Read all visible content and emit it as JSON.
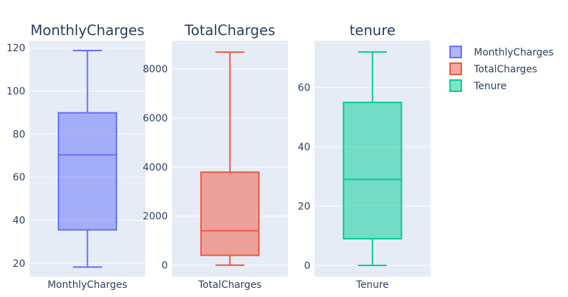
{
  "chart_data": {
    "type": "box",
    "legend": {
      "position": "right",
      "entries": [
        "MonthlyCharges",
        "TotalCharges",
        "Tenure"
      ]
    },
    "grid": true,
    "subplots": [
      {
        "title": "MonthlyCharges",
        "category": "MonthlyCharges",
        "series_name": "MonthlyCharges",
        "color": "#636efa",
        "fill": "rgba(99,110,250,0.5)",
        "ylim": [
          13.8,
          123.3
        ],
        "yticks": [
          20,
          40,
          60,
          80,
          100,
          120
        ],
        "stats": {
          "min": 18.25,
          "q1": 35.5,
          "median": 70.35,
          "q3": 89.85,
          "max": 118.75
        }
      },
      {
        "title": "TotalCharges",
        "category": "TotalCharges",
        "series_name": "TotalCharges",
        "color": "#ef553b",
        "fill": "rgba(239,85,59,0.5)",
        "ylim": [
          -470,
          9150
        ],
        "yticks": [
          0,
          2000,
          4000,
          6000,
          8000
        ],
        "stats": {
          "min": 0,
          "q1": 400,
          "median": 1400,
          "q3": 3790,
          "max": 8684.8
        }
      },
      {
        "title": "tenure",
        "category": "Tenure",
        "series_name": "Tenure",
        "color": "#00cc96",
        "fill": "rgba(0,204,150,0.5)",
        "ylim": [
          -3.8,
          75.8
        ],
        "yticks": [
          0,
          20,
          40,
          60
        ],
        "stats": {
          "min": 0,
          "q1": 9,
          "median": 29,
          "q3": 55,
          "max": 72
        }
      }
    ]
  }
}
